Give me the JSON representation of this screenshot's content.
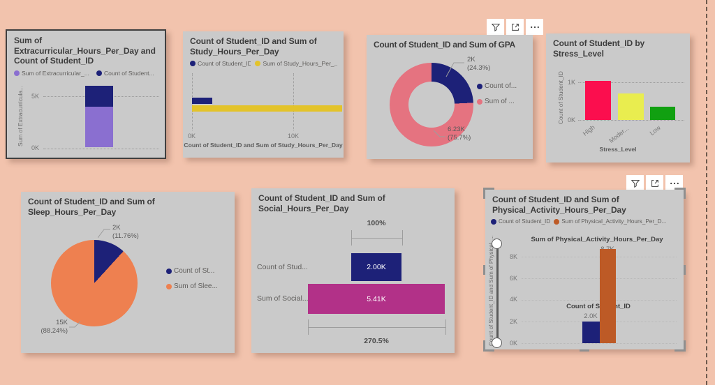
{
  "page": {
    "background": "#f2c3ad",
    "panel_background": "#cacaca"
  },
  "toolbars": {
    "gpa_visual": {
      "icons": [
        "filter",
        "focus-mode",
        "more-options"
      ]
    },
    "physical_visual": {
      "icons": [
        "filter",
        "focus-mode",
        "more-options"
      ]
    }
  },
  "chart_data": [
    {
      "id": "extracurricular",
      "type": "bar",
      "subtype": "stacked-column",
      "title": "Sum of Extracurricular_Hours_Per_Day and Count of Student_ID",
      "series": [
        {
          "name": "Sum of Extracurricular_...",
          "color": "#8a6fd0",
          "value": 3.9
        },
        {
          "name": "Count of Student...",
          "color": "#1d2178",
          "value": 2.0
        }
      ],
      "ylabel": "Sum of Extracurricula...",
      "yticks": [
        "0K",
        "5K"
      ],
      "ylim": [
        0,
        6.2
      ],
      "units": "K",
      "grid": "dotted"
    },
    {
      "id": "study",
      "type": "bar",
      "subtype": "horizontal-clustered",
      "title": "Count of Student_ID and Sum of Study_Hours_Per_Day",
      "series": [
        {
          "name": "Count of Student_ID",
          "color": "#1d2178",
          "value": 2.0
        },
        {
          "name": "Sum of Study_Hours_Per_...",
          "color": "#e3c32a",
          "value": 14.8
        }
      ],
      "xticks": [
        "0K",
        "10K"
      ],
      "xlim": [
        0,
        15.5
      ],
      "xlabel": "Count of Student_ID and Sum of Study_Hours_Per_Day",
      "units": "K",
      "grid": "dotted"
    },
    {
      "id": "gpa",
      "type": "pie",
      "subtype": "donut",
      "title": "Count of Student_ID and Sum of GPA",
      "slices": [
        {
          "name": "Count of...",
          "color": "#1d2178",
          "value_label": "2K",
          "pct_label": "(24.3%)",
          "pct": 24.3
        },
        {
          "name": "Sum of ...",
          "color": "#e57380",
          "value_label": "6.23K",
          "pct_label": "(75.7%)",
          "pct": 75.7
        }
      ],
      "legend_position": "right"
    },
    {
      "id": "stress",
      "type": "bar",
      "subtype": "column",
      "title": "Count of Student_ID by Stress_Level",
      "categories": [
        "High",
        "Moder...",
        "Low"
      ],
      "values": [
        1.04,
        0.7,
        0.35
      ],
      "colors": [
        "#fb0e4e",
        "#e9ed4f",
        "#11a011"
      ],
      "ylabel": "Count of Student_ID",
      "yticks": [
        "0K",
        "1K"
      ],
      "ylim": [
        0,
        1.1
      ],
      "xlabel": "Stress_Level",
      "units": "K",
      "grid": "dotted"
    },
    {
      "id": "sleep",
      "type": "pie",
      "subtype": "pie",
      "title": "Count of Student_ID and Sum of Sleep_Hours_Per_Day",
      "slices": [
        {
          "name": "Count of St...",
          "color": "#1d2178",
          "value_label": "2K",
          "pct_label": "(11.76%)",
          "pct": 11.76
        },
        {
          "name": "Sum of Slee...",
          "color": "#ee8050",
          "value_label": "15K",
          "pct_label": "(88.24%)",
          "pct": 88.24
        }
      ],
      "legend_position": "right"
    },
    {
      "id": "social",
      "type": "funnel",
      "title": "Count of Student_ID and Sum of Social_Hours_Per_Day",
      "top_label": "100%",
      "bottom_label": "270.5%",
      "rows": [
        {
          "name": "Count of Stud...",
          "color": "#1d2178",
          "value": 2.0,
          "value_label": "2.00K"
        },
        {
          "name": "Sum of Social...",
          "color": "#b23188",
          "value": 5.41,
          "value_label": "5.41K"
        }
      ]
    },
    {
      "id": "physical",
      "type": "bar",
      "subtype": "column",
      "title": "Count of Student_ID and Sum of Physical_Activity_Hours_Per_Day",
      "series": [
        {
          "legend_label": "Count of Student_ID",
          "annotation_label": "Count of Student_ID",
          "color": "#1d2178",
          "value": 2.0,
          "value_label": "2.0K"
        },
        {
          "legend_label": "Sum of Physical_Activity_Hours_Per_D...",
          "annotation_label": "Sum of Physical_Activity_Hours_Per_Day",
          "color": "#bd5a26",
          "value": 8.7,
          "value_label": "8.7K"
        }
      ],
      "ylabel": "Count of Student_ID and Sum of Physical_...",
      "yticks": [
        "0K",
        "2K",
        "4K",
        "6K",
        "8K"
      ],
      "ylim": [
        0,
        9.3
      ],
      "units": "K",
      "grid": "dotted",
      "has_slider": true,
      "selected": true
    }
  ]
}
